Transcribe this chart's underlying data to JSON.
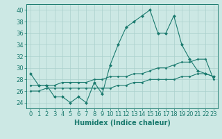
{
  "title": "",
  "xlabel": "Humidex (Indice chaleur)",
  "ylabel": "",
  "x": [
    0,
    1,
    2,
    3,
    4,
    5,
    6,
    7,
    8,
    9,
    10,
    11,
    12,
    13,
    14,
    15,
    16,
    17,
    18,
    19,
    20,
    21,
    22,
    23
  ],
  "line1": [
    29,
    27,
    27,
    25,
    25,
    24,
    25,
    24,
    27.5,
    25.5,
    30.5,
    34,
    37,
    38,
    39,
    40,
    36,
    36,
    39,
    34,
    31.5,
    29.5,
    29,
    28.5
  ],
  "line2": [
    27,
    27,
    27,
    27,
    27.5,
    27.5,
    27.5,
    27.5,
    28,
    28,
    28.5,
    28.5,
    28.5,
    29,
    29,
    29.5,
    30,
    30,
    30.5,
    31,
    31,
    31.5,
    31.5,
    28
  ],
  "line3": [
    26,
    26,
    26.5,
    26.5,
    26.5,
    26.5,
    26.5,
    26.5,
    26.5,
    26.5,
    26.5,
    27,
    27,
    27.5,
    27.5,
    28,
    28,
    28,
    28,
    28.5,
    28.5,
    29,
    29,
    28.5
  ],
  "line_color": "#1a7a6e",
  "bg_color": "#cce8e4",
  "grid_color": "#aad0cc",
  "ylim": [
    23,
    41
  ],
  "yticks": [
    24,
    26,
    28,
    30,
    32,
    34,
    36,
    38,
    40
  ],
  "xlim": [
    -0.5,
    23.5
  ],
  "tick_fontsize": 6,
  "label_fontsize": 7
}
